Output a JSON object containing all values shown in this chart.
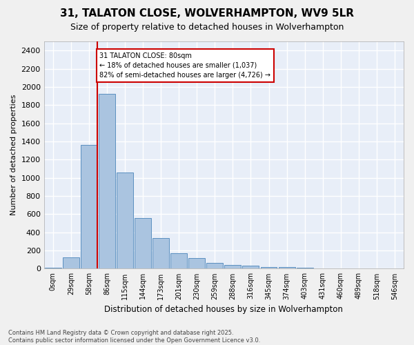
{
  "title": "31, TALATON CLOSE, WOLVERHAMPTON, WV9 5LR",
  "subtitle": "Size of property relative to detached houses in Wolverhampton",
  "xlabel": "Distribution of detached houses by size in Wolverhampton",
  "ylabel": "Number of detached properties",
  "footer": "Contains HM Land Registry data © Crown copyright and database right 2025.\nContains public sector information licensed under the Open Government Licence v3.0.",
  "bar_values": [
    10,
    125,
    1360,
    1920,
    1055,
    560,
    335,
    168,
    115,
    65,
    38,
    30,
    22,
    15,
    8,
    5,
    3,
    2,
    2,
    1
  ],
  "bin_labels": [
    "0sqm",
    "29sqm",
    "58sqm",
    "86sqm",
    "115sqm",
    "144sqm",
    "173sqm",
    "201sqm",
    "230sqm",
    "259sqm",
    "288sqm",
    "316sqm",
    "345sqm",
    "374sqm",
    "403sqm",
    "431sqm",
    "460sqm",
    "489sqm",
    "518sqm",
    "546sqm"
  ],
  "bar_color": "#aac4e0",
  "bar_edge_color": "#5a8fc0",
  "bg_color": "#e8eef8",
  "grid_color": "#ffffff",
  "annotation_text": "31 TALATON CLOSE: 80sqm\n← 18% of detached houses are smaller (1,037)\n82% of semi-detached houses are larger (4,726) →",
  "vline_color": "#cc0000",
  "annotation_box_edge_color": "#cc0000",
  "ylim": [
    0,
    2500
  ],
  "yticks": [
    0,
    200,
    400,
    600,
    800,
    1000,
    1200,
    1400,
    1600,
    1800,
    2000,
    2200,
    2400
  ],
  "fig_bg_color": "#f0f0f0"
}
